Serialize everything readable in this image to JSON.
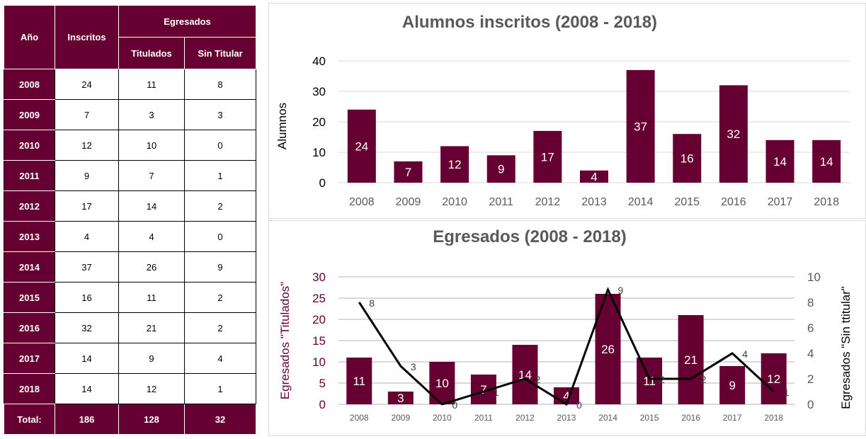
{
  "table": {
    "headers": {
      "year": "Año",
      "enrolled": "Inscritos",
      "graduates": "Egresados",
      "titled": "Titulados",
      "untitled": "Sin Titular"
    },
    "rows": [
      [
        "2008",
        "24",
        "11",
        "8"
      ],
      [
        "2009",
        "7",
        "3",
        "3"
      ],
      [
        "2010",
        "12",
        "10",
        "0"
      ],
      [
        "2011",
        "9",
        "7",
        "1"
      ],
      [
        "2012",
        "17",
        "14",
        "2"
      ],
      [
        "2013",
        "4",
        "4",
        "0"
      ],
      [
        "2014",
        "37",
        "26",
        "9"
      ],
      [
        "2015",
        "16",
        "11",
        "2"
      ],
      [
        "2016",
        "32",
        "21",
        "2"
      ],
      [
        "2017",
        "14",
        "9",
        "4"
      ],
      [
        "2018",
        "14",
        "12",
        "1"
      ]
    ],
    "total": [
      "Total:",
      "186",
      "128",
      "32"
    ]
  },
  "chart_data": [
    {
      "type": "bar",
      "title": "Alumnos inscritos (2008 - 2018)",
      "ylabel": "Alumnos",
      "xlabel": "",
      "categories": [
        "2008",
        "2009",
        "2010",
        "2011",
        "2012",
        "2013",
        "2014",
        "2015",
        "2016",
        "2017",
        "2018"
      ],
      "values": [
        24,
        7,
        12,
        9,
        17,
        4,
        37,
        16,
        32,
        14,
        14
      ],
      "ylim": [
        0,
        40
      ],
      "yticks": [
        0,
        10,
        20,
        30,
        40
      ],
      "grid": true,
      "color": "#660033"
    },
    {
      "type": "bar+line",
      "title": "Egresados (2008 - 2018)",
      "ylabel": "Egresados \"Titulados\"",
      "y2label": "Egresados  \"Sin ttitular\"",
      "categories": [
        "2008",
        "2009",
        "2010",
        "2011",
        "2012",
        "2013",
        "2014",
        "2015",
        "2016",
        "2017",
        "2018"
      ],
      "series": [
        {
          "name": "Titulados",
          "type": "bar",
          "axis": "left",
          "values": [
            11,
            3,
            10,
            7,
            14,
            4,
            26,
            11,
            21,
            9,
            12
          ],
          "color": "#660033"
        },
        {
          "name": "Sin Titular",
          "type": "line",
          "axis": "right",
          "values": [
            8,
            3,
            0,
            1,
            2,
            0,
            9,
            2,
            2,
            4,
            1
          ],
          "color": "#000000"
        }
      ],
      "ylim": [
        0,
        30
      ],
      "yticks": [
        0,
        5,
        10,
        15,
        20,
        25,
        30
      ],
      "y2lim": [
        0,
        10
      ],
      "y2ticks": [
        0,
        2,
        4,
        6,
        8,
        10
      ],
      "grid": true
    }
  ]
}
